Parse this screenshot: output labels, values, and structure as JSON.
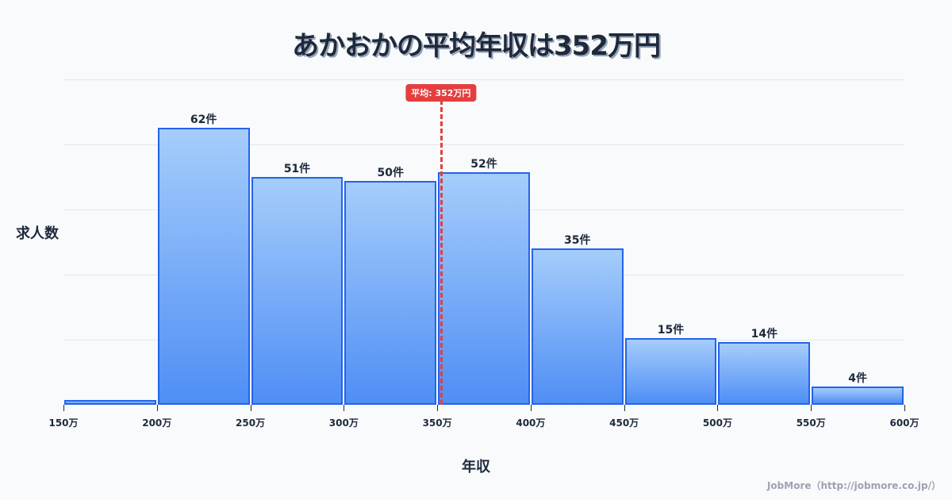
{
  "title": "あかおかの平均年収は352万円",
  "credit": "JobMore（http://jobmore.co.jp/）",
  "mean_badge": "平均: 352万円",
  "colors": {
    "bar_top": "#a5cdfb",
    "bar_bottom": "#4f8ef5",
    "bar_border": "#2563eb",
    "mean_line": "#e53e3e",
    "text": "#1e293b",
    "background": "#f8fafc",
    "grid": "#e2e8f0"
  },
  "chart_data": {
    "type": "bar",
    "title": "あかおかの平均年収は352万円",
    "xlabel": "年収",
    "ylabel": "求人数",
    "categories": [
      "150万-200万",
      "200万-250万",
      "250万-300万",
      "300万-350万",
      "350万-400万",
      "400万-450万",
      "450万-500万",
      "500万-550万",
      "550万-600万"
    ],
    "bin_edges": [
      150,
      200,
      250,
      300,
      350,
      400,
      450,
      500,
      550,
      600
    ],
    "tick_labels": [
      "150万",
      "200万",
      "250万",
      "300万",
      "350万",
      "400万",
      "450万",
      "500万",
      "550万",
      "600万"
    ],
    "values": [
      1,
      62,
      51,
      50,
      52,
      35,
      15,
      14,
      4
    ],
    "value_labels": [
      "",
      "62件",
      "51件",
      "50件",
      "52件",
      "35件",
      "15件",
      "14件",
      "4件"
    ],
    "mean": 352,
    "mean_label": "平均: 352万円",
    "ylim": [
      0,
      72.8
    ],
    "grid": true,
    "gridlines": 5,
    "legend": null
  }
}
